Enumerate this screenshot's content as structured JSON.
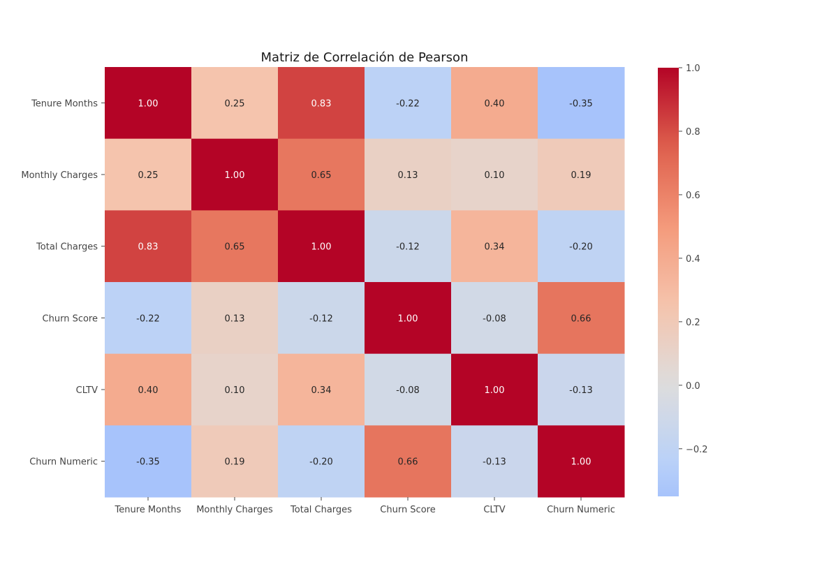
{
  "chart_data": {
    "type": "heatmap",
    "title": "Matriz de Correlación de Pearson",
    "xlabel": "",
    "ylabel": "",
    "x_categories": [
      "Tenure Months",
      "Monthly Charges",
      "Total Charges",
      "Churn Score",
      "CLTV",
      "Churn Numeric"
    ],
    "y_categories": [
      "Tenure Months",
      "Monthly Charges",
      "Total Charges",
      "Churn Score",
      "CLTV",
      "Churn Numeric"
    ],
    "values": [
      [
        1.0,
        0.25,
        0.83,
        -0.22,
        0.4,
        -0.35
      ],
      [
        0.25,
        1.0,
        0.65,
        0.13,
        0.1,
        0.19
      ],
      [
        0.83,
        0.65,
        1.0,
        -0.12,
        0.34,
        -0.2
      ],
      [
        -0.22,
        0.13,
        -0.12,
        1.0,
        -0.08,
        0.66
      ],
      [
        0.4,
        0.1,
        0.34,
        -0.08,
        1.0,
        -0.13
      ],
      [
        -0.35,
        0.19,
        -0.2,
        0.66,
        -0.13,
        1.0
      ]
    ],
    "value_format": "0.00",
    "colormap": "coolwarm",
    "color_range": [
      -0.35,
      1.0
    ],
    "center": 0.0,
    "colorbar_ticks": [
      1.0,
      0.8,
      0.6,
      0.4,
      0.2,
      0.0,
      -0.2
    ],
    "colorbar_tick_labels": [
      "1.0",
      "0.8",
      "0.6",
      "0.4",
      "0.2",
      "0.0",
      "−0.2"
    ],
    "colorbar_position": "right",
    "grid": false
  }
}
